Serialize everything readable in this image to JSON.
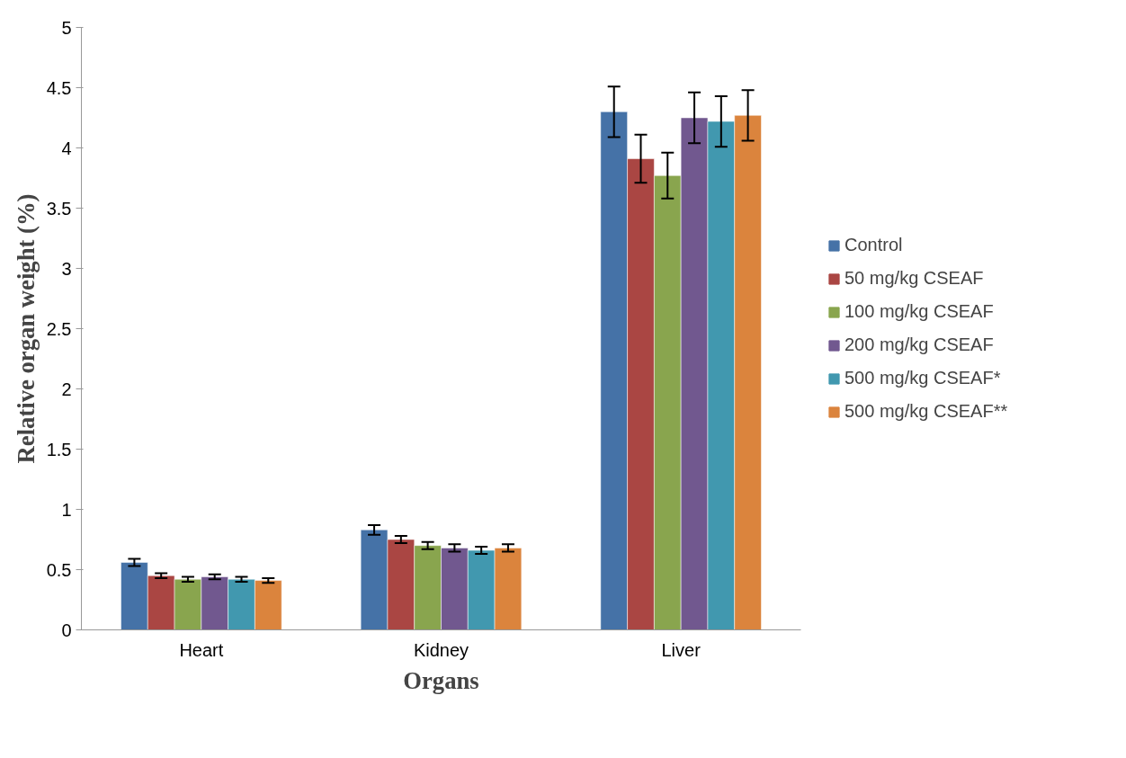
{
  "chart_data": {
    "type": "bar",
    "xlabel": "Organs",
    "ylabel": "Relative organ weight (%)",
    "categories": [
      "Heart",
      "Kidney",
      "Liver"
    ],
    "series": [
      {
        "name": "Control",
        "color": "#4572a7",
        "values": [
          0.56,
          0.83,
          4.3
        ],
        "errors": [
          0.03,
          0.04,
          0.21
        ]
      },
      {
        "name": "50 mg/kg CSEAF",
        "color": "#aa4643",
        "values": [
          0.45,
          0.75,
          3.91
        ],
        "errors": [
          0.02,
          0.03,
          0.2
        ]
      },
      {
        "name": "100 mg/kg CSEAF",
        "color": "#89a54e",
        "values": [
          0.42,
          0.7,
          3.77
        ],
        "errors": [
          0.02,
          0.03,
          0.19
        ]
      },
      {
        "name": "200 mg/kg CSEAF",
        "color": "#71588f",
        "values": [
          0.44,
          0.68,
          4.25
        ],
        "errors": [
          0.02,
          0.03,
          0.21
        ]
      },
      {
        "name": "500 mg/kg CSEAF*",
        "color": "#4198af",
        "values": [
          0.42,
          0.66,
          4.22
        ],
        "errors": [
          0.02,
          0.03,
          0.21
        ]
      },
      {
        "name": "500 mg/kg CSEAF**",
        "color": "#db843d",
        "values": [
          0.41,
          0.68,
          4.27
        ],
        "errors": [
          0.02,
          0.03,
          0.21
        ]
      }
    ],
    "ylim": [
      0,
      5
    ],
    "yticks": [
      0,
      0.5,
      1,
      1.5,
      2,
      2.5,
      3,
      3.5,
      4,
      4.5,
      5
    ],
    "grid": false,
    "legend": "right"
  }
}
